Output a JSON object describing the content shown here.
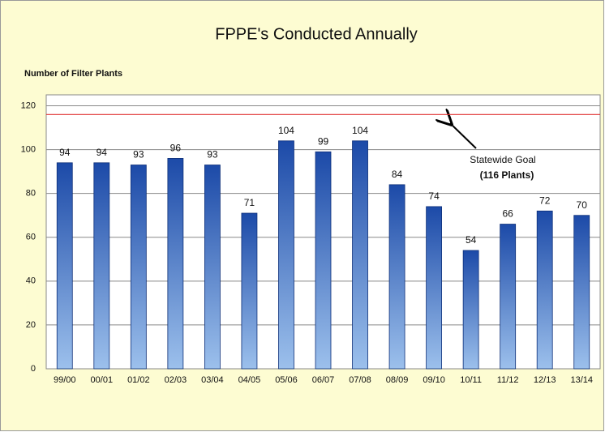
{
  "chart_data": {
    "type": "bar",
    "title": "FPPE's Conducted Annually",
    "y_label": "Number of Filter Plants",
    "categories": [
      "99/00",
      "00/01",
      "01/02",
      "02/03",
      "03/04",
      "04/05",
      "05/06",
      "06/07",
      "07/08",
      "08/09",
      "09/10",
      "10/11",
      "11/12",
      "12/13",
      "13/14"
    ],
    "values": [
      94,
      94,
      93,
      96,
      93,
      71,
      104,
      99,
      104,
      84,
      74,
      54,
      66,
      72,
      70
    ],
    "color": "#2456b0",
    "ylim": [
      0,
      125
    ],
    "yticks": [
      0,
      20,
      40,
      60,
      80,
      100,
      120
    ],
    "grid": true,
    "goal": {
      "value": 116,
      "color": "#e03030",
      "label_1": "Statewide Goal",
      "label_2": "(116 Plants)"
    }
  }
}
